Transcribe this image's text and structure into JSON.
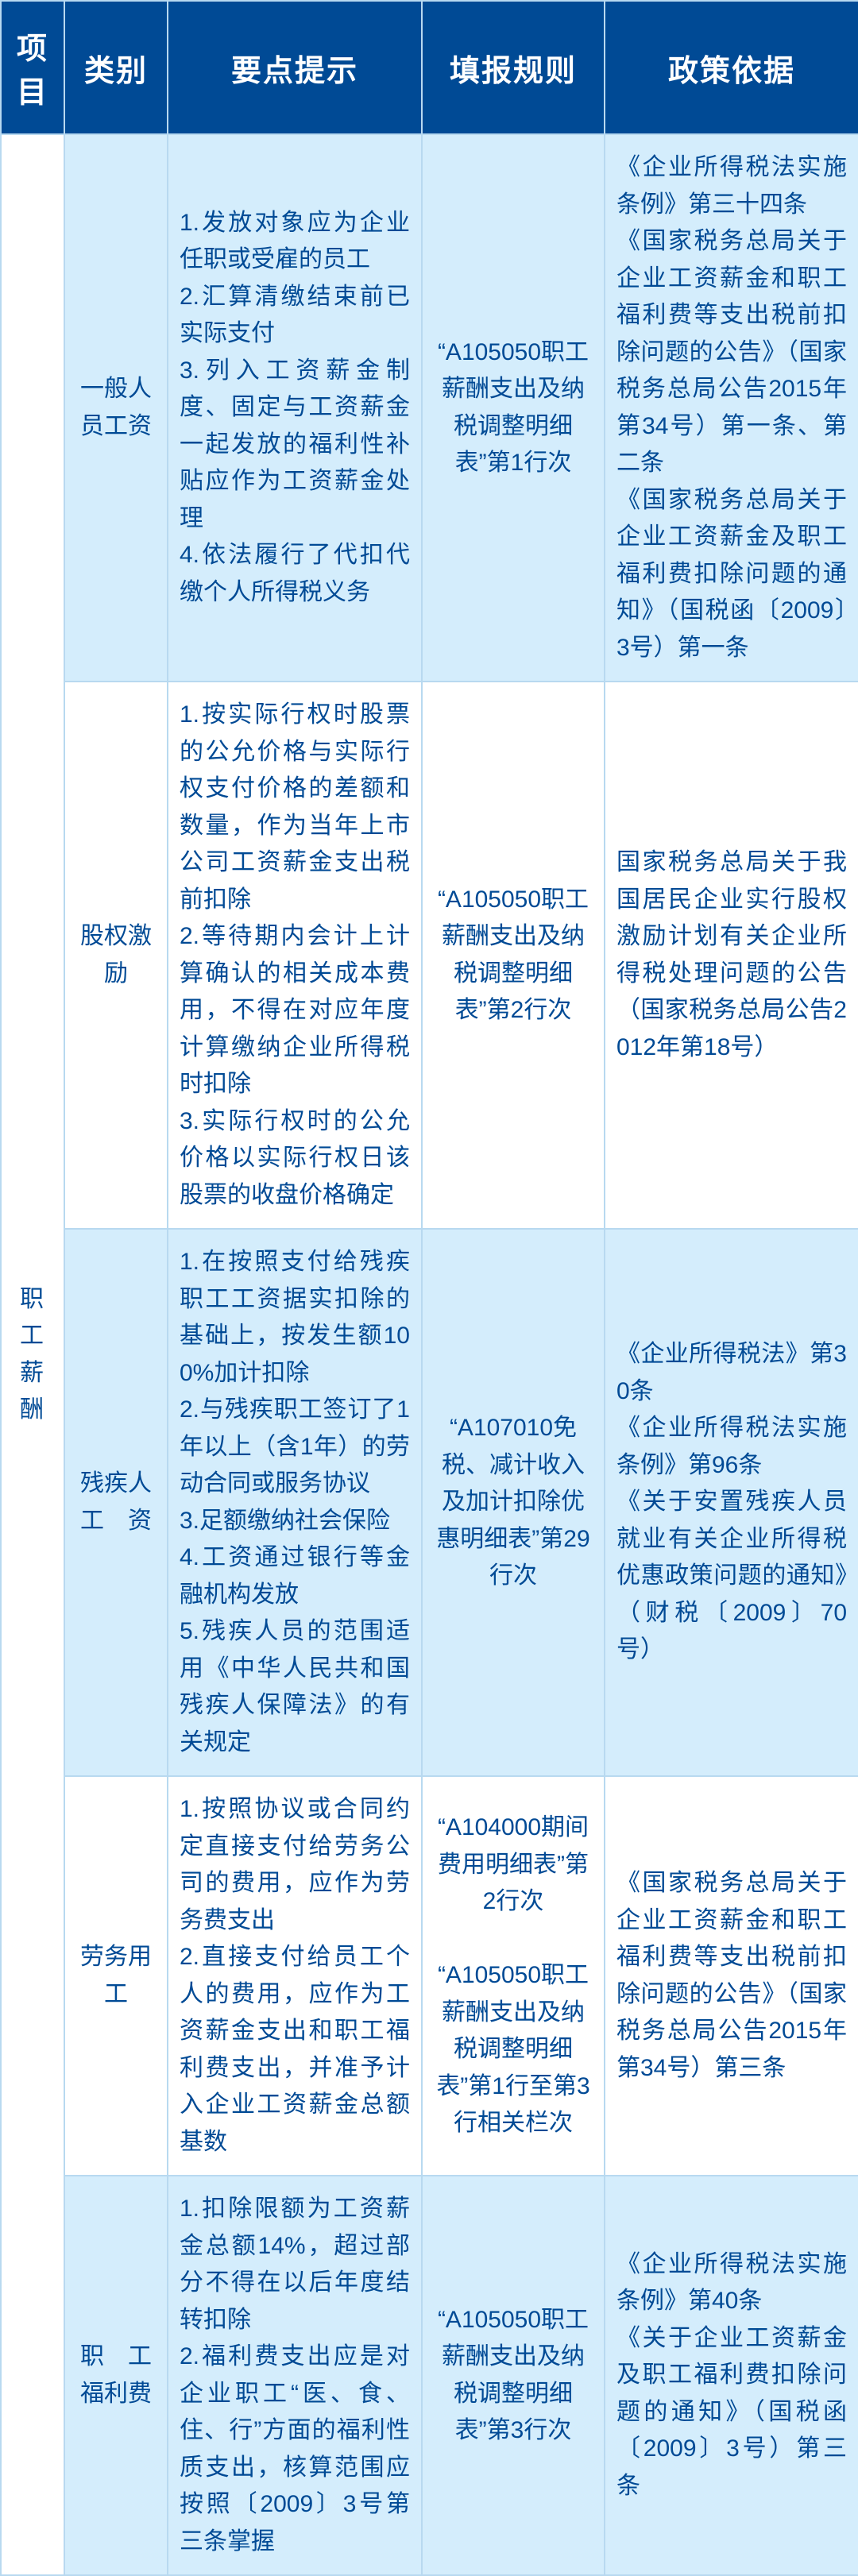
{
  "colors": {
    "header_bg": "#004a95",
    "header_fg": "#ffffff",
    "cell_fg": "#004a95",
    "border": "#b8d9f0",
    "alt_row_bg": "#d4edfc"
  },
  "headers": {
    "project": "项目",
    "category": "类别",
    "tips": "要点提示",
    "rule": "填报规则",
    "basis": "政策依据"
  },
  "merged_project": "职工薪酬",
  "rows": [
    {
      "category": "一般人员工资",
      "tips": "1.发放对象应为企业任职或受雇的员工\n2.汇算清缴结束前已实际支付\n3.列入工资薪金制度、固定与工资薪金一起发放的福利性补贴应作为工资薪金处理\n4.依法履行了代扣代缴个人所得税义务",
      "rule": "“A105050职工薪酬支出及纳税调整明细表”第1行次",
      "basis": "《企业所得税法实施条例》第三十四条\n《国家税务总局关于企业工资薪金和职工福利费等支出税前扣除问题的公告》（国家税务总局公告2015年第34号）第一条、第二条\n《国家税务总局关于企业工资薪金及职工福利费扣除问题的通知》（国税函〔2009〕3号）第一条"
    },
    {
      "category": "股权激励",
      "tips": "1.按实际行权时股票的公允价格与实际行权支付价格的差额和数量，作为当年上市公司工资薪金支出税前扣除\n2.等待期内会计上计算确认的相关成本费用，不得在对应年度计算缴纳企业所得税时扣除\n3.实际行权时的公允价格以实际行权日该股票的收盘价格确定",
      "rule": "“A105050职工薪酬支出及纳税调整明细表”第2行次",
      "basis": "国家税务总局关于我国居民企业实行股权激励计划有关企业所得税处理问题的公告（国家税务总局公告2012年第18号）"
    },
    {
      "category": "残疾人工　资",
      "tips": "1.在按照支付给残疾职工工资据实扣除的基础上，按发生额100%加计扣除\n2.与残疾职工签订了1年以上（含1年）的劳动合同或服务协议\n3.足额缴纳社会保险\n4.工资通过银行等金融机构发放\n5.残疾人员的范围适用《中华人民共和国残疾人保障法》的有关规定",
      "rule": "“A107010免税、减计收入及加计扣除优惠明细表”第29行次",
      "basis": "《企业所得税法》第30条\n《企业所得税法实施条例》第96条\n《关于安置残疾人员就业有关企业所得税优惠政策问题的通知》（财税〔2009〕70号）"
    },
    {
      "category": "劳务用工",
      "tips": "1.按照协议或合同约定直接支付给劳务公司的费用，应作为劳务费支出\n2.直接支付给员工个人的费用，应作为工资薪金支出和职工福利费支出，并准予计入企业工资薪金总额基数",
      "rule": "“A104000期间费用明细表”第2行次\n\n“A105050职工薪酬支出及纳税调整明细表”第1行至第3行相关栏次",
      "basis": "《国家税务总局关于企业工资薪金和职工福利费等支出税前扣除问题的公告》（国家税务总局公告2015年第34号）第三条"
    },
    {
      "category": "职　工福利费",
      "tips": "1.扣除限额为工资薪金总额14%，超过部分不得在以后年度结转扣除\n2.福利费支出应是对企业职工“医、食、住、行”方面的福利性质支出，核算范围应按照〔2009〕3号第三条掌握",
      "rule": "“A105050职工薪酬支出及纳税调整明细表”第3行次",
      "basis": "《企业所得税法实施条例》第40条\n《关于企业工资薪金及职工福利费扣除问题的通知》（国税函〔2009〕3号）第三条"
    }
  ]
}
